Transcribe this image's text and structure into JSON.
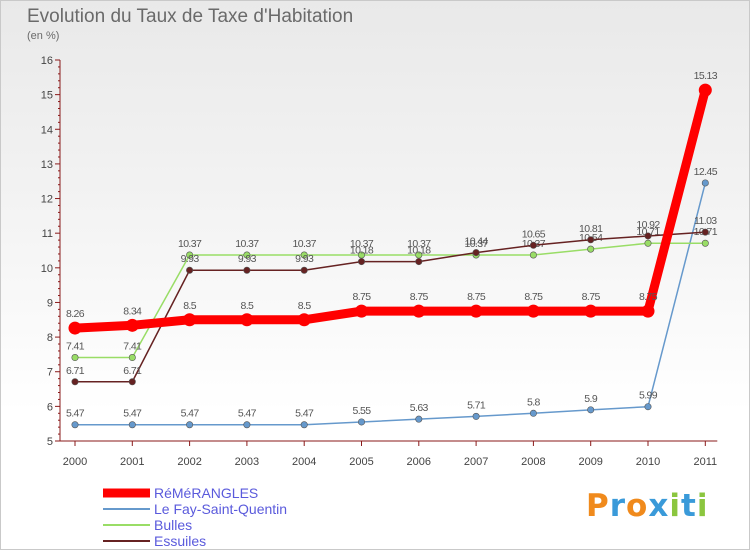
{
  "chart_data": {
    "type": "line",
    "title": "Evolution du Taux de Taxe d'Habitation",
    "subtitle": "(en %)",
    "x": [
      "2000",
      "2001",
      "2002",
      "2003",
      "2004",
      "2005",
      "2006",
      "2007",
      "2008",
      "2009",
      "2010",
      "2011"
    ],
    "ylim": [
      5,
      16
    ],
    "yticks": [
      5,
      6,
      7,
      8,
      9,
      10,
      11,
      12,
      13,
      14,
      15,
      16
    ],
    "grid": false,
    "legend": "bottom-left",
    "series": [
      {
        "name": "RéMéRANGLES",
        "color": "#ff0000",
        "values": [
          8.26,
          8.34,
          8.5,
          8.5,
          8.5,
          8.75,
          8.75,
          8.75,
          8.75,
          8.75,
          8.75,
          15.13
        ],
        "labels": [
          "8.26",
          "8.34",
          "8.5",
          "8.5",
          "8.5",
          "8.75",
          "8.75",
          "8.75",
          "8.75",
          "8.75",
          "8.75",
          "15.13"
        ]
      },
      {
        "name": "Le Fay-Saint-Quentin",
        "color": "#6699cc",
        "values": [
          5.47,
          5.47,
          5.47,
          5.47,
          5.47,
          5.55,
          5.63,
          5.71,
          5.8,
          5.9,
          5.99,
          12.45
        ],
        "labels": [
          "5.47",
          "5.47",
          "5.47",
          "5.47",
          "5.47",
          "5.55",
          "5.63",
          "5.71",
          "5.8",
          "5.9",
          "5.99",
          "12.45"
        ]
      },
      {
        "name": "Bulles",
        "color": "#99dd66",
        "values": [
          7.41,
          7.41,
          10.37,
          10.37,
          10.37,
          10.37,
          10.37,
          10.37,
          10.37,
          10.54,
          10.71,
          10.71
        ],
        "labels": [
          "7.41",
          "7.41",
          "10.37",
          "10.37",
          "10.37",
          "10.37",
          "10.37",
          "10.37",
          "10.37",
          "10.54",
          "10.71",
          "10.71"
        ]
      },
      {
        "name": "Essuiles",
        "color": "#662222",
        "values": [
          6.71,
          6.71,
          9.93,
          9.93,
          9.93,
          10.18,
          10.18,
          10.44,
          10.65,
          10.81,
          10.92,
          11.03
        ],
        "labels": [
          "6.71",
          "6.71",
          "9.93",
          "9.93",
          "9.93",
          "10.18",
          "10.18",
          "10.44",
          "10.65",
          "10.81",
          "10.92",
          "11.03"
        ]
      }
    ]
  },
  "logo": {
    "text": "Proxiti",
    "colors": [
      "#f08a1c",
      "#3a9ad9",
      "#f08a1c",
      "#3a9ad9",
      "#8bc63f",
      "#3a9ad9",
      "#8bc63f"
    ]
  }
}
